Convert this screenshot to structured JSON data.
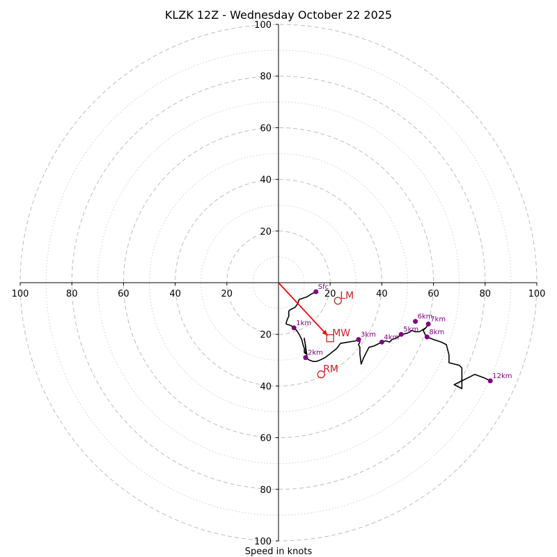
{
  "chart_data": {
    "type": "hodograph",
    "title": "KLZK 12Z - Wednesday October 22 2025",
    "xlabel": "Speed in knots",
    "ylabel": "",
    "range": [
      -100,
      100
    ],
    "ring_major": [
      20,
      40,
      60,
      80,
      100
    ],
    "ring_minor": [
      10,
      30,
      50,
      70,
      90
    ],
    "x_ticks": [
      -100,
      -80,
      -60,
      -40,
      -20,
      20,
      40,
      60,
      80,
      100
    ],
    "x_tick_labels": [
      "100",
      "80",
      "60",
      "40",
      "20",
      "20",
      "40",
      "60",
      "80",
      "100"
    ],
    "y_ticks": [
      100,
      80,
      60,
      40,
      20,
      -20,
      -40,
      -60,
      -80,
      -100
    ],
    "y_tick_labels": [
      "100",
      "80",
      "60",
      "40",
      "20",
      "20",
      "40",
      "60",
      "80",
      "100"
    ],
    "colors": {
      "trace": "#000000",
      "height_markers": "#800080",
      "storm_motion": "#cc2222",
      "mean_wind_vector": "#ff0000",
      "ring": "#bdbdbd"
    },
    "trace": [
      [
        14.5,
        -3.5
      ],
      [
        12.5,
        -4.5
      ],
      [
        11,
        -5.5
      ],
      [
        8,
        -6.5
      ],
      [
        7.5,
        -8
      ],
      [
        6.5,
        -9.5
      ],
      [
        4.5,
        -10.5
      ],
      [
        4,
        -11
      ],
      [
        4,
        -12
      ],
      [
        4,
        -13
      ],
      [
        3.5,
        -14
      ],
      [
        3,
        -15.5
      ],
      [
        3,
        -16
      ],
      [
        4.5,
        -16.5
      ],
      [
        5.5,
        -17
      ],
      [
        6,
        -17.5
      ],
      [
        7,
        -18.5
      ],
      [
        8,
        -20
      ],
      [
        9,
        -22
      ],
      [
        9.5,
        -24
      ],
      [
        10,
        -25.5
      ],
      [
        10,
        -27
      ],
      [
        10.5,
        -27.5
      ],
      [
        10.5,
        -26
      ],
      [
        10.5,
        -24.5
      ],
      [
        10,
        -22
      ],
      [
        10,
        -21.5
      ],
      [
        10.5,
        -25
      ],
      [
        11,
        -28
      ],
      [
        10.5,
        -29
      ],
      [
        12,
        -30
      ],
      [
        13.5,
        -30.5
      ],
      [
        14.5,
        -30.5
      ],
      [
        16,
        -30
      ],
      [
        18,
        -29
      ],
      [
        20,
        -27.5
      ],
      [
        22.5,
        -25.5
      ],
      [
        24,
        -23.5
      ],
      [
        27,
        -23
      ],
      [
        30,
        -22.5
      ],
      [
        31,
        -22
      ],
      [
        31.5,
        -23
      ],
      [
        31,
        -24
      ],
      [
        31.5,
        -25
      ],
      [
        31.5,
        -27.5
      ],
      [
        32,
        -31.5
      ],
      [
        33,
        -29
      ],
      [
        35,
        -25
      ],
      [
        37,
        -24.5
      ],
      [
        40,
        -23
      ],
      [
        41.5,
        -22.5
      ],
      [
        43,
        -23
      ],
      [
        44,
        -22
      ],
      [
        45.5,
        -21.5
      ],
      [
        47,
        -20.5
      ],
      [
        48,
        -20
      ],
      [
        50,
        -19.5
      ],
      [
        51,
        -19
      ],
      [
        51.5,
        -18.5
      ],
      [
        53,
        -19
      ],
      [
        54.5,
        -19
      ],
      [
        57,
        -17.5
      ],
      [
        58,
        -16
      ],
      [
        57,
        -17.5
      ],
      [
        56,
        -18.5
      ],
      [
        57,
        -20.5
      ],
      [
        57.5,
        -21
      ],
      [
        60,
        -22
      ],
      [
        63,
        -23
      ],
      [
        65,
        -24
      ],
      [
        66,
        -28
      ],
      [
        66,
        -31
      ],
      [
        70,
        -32
      ],
      [
        71,
        -33
      ],
      [
        71,
        -38
      ],
      [
        71,
        -41
      ],
      [
        68,
        -39.5
      ],
      [
        72,
        -37.5
      ],
      [
        76,
        -35.5
      ],
      [
        80,
        -37
      ],
      [
        82,
        -38
      ]
    ],
    "height_markers": [
      {
        "label": "Sfc",
        "u": 14.5,
        "v": -3.5
      },
      {
        "label": "1km",
        "u": 6,
        "v": -17.5
      },
      {
        "label": "2km",
        "u": 10.5,
        "v": -29
      },
      {
        "label": "3km",
        "u": 31,
        "v": -22
      },
      {
        "label": "4km",
        "u": 40,
        "v": -23
      },
      {
        "label": "5km",
        "u": 47.5,
        "v": -20
      },
      {
        "label": "6km",
        "u": 53,
        "v": -15
      },
      {
        "label": "7km",
        "u": 58,
        "v": -16
      },
      {
        "label": "8km",
        "u": 57.5,
        "v": -21
      },
      {
        "label": "12km",
        "u": 82,
        "v": -38
      }
    ],
    "storm_motion": [
      {
        "label": "LM",
        "u": 23,
        "v": -7,
        "marker": "circle"
      },
      {
        "label": "MW",
        "u": 20,
        "v": -21.5,
        "marker": "square"
      },
      {
        "label": "RM",
        "u": 16.5,
        "v": -35.5,
        "marker": "circle"
      }
    ],
    "mean_wind_vector": {
      "from": [
        0,
        0
      ],
      "to": [
        19,
        -20.5
      ]
    }
  }
}
